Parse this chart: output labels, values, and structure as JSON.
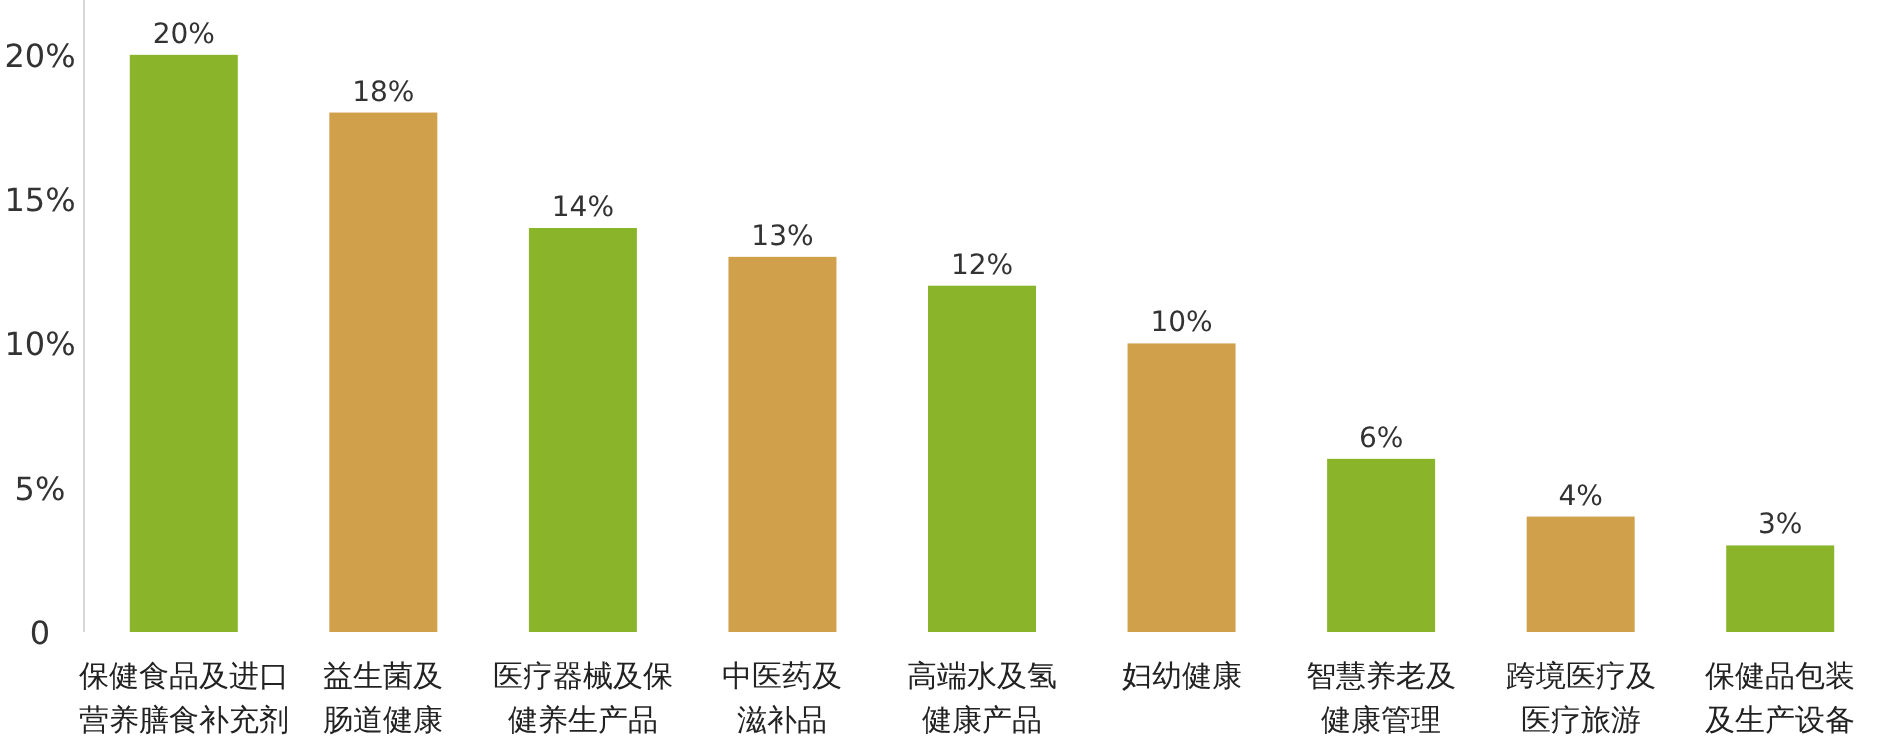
{
  "chart_data": {
    "type": "bar",
    "categories": [
      "保健食品及进口营养膳食补充剂",
      "益生菌及肠道健康",
      "医疗器械及保健养生产品",
      "中医药及滋补品",
      "高端水及氢健康产品",
      "妇幼健康",
      "智慧养老及健康管理",
      "跨境医疗及医疗旅游",
      "保健品包装及生产设备"
    ],
    "values": [
      20,
      18,
      14,
      13,
      12,
      10,
      6,
      4,
      3
    ],
    "colors": [
      "#8ab52a",
      "#d1a04b",
      "#8ab52a",
      "#d1a04b",
      "#8ab52a",
      "#d1a04b",
      "#8ab52a",
      "#d1a04b",
      "#8ab52a"
    ],
    "value_labels": [
      "20%",
      "18%",
      "14%",
      "13%",
      "12%",
      "10%",
      "6%",
      "4%",
      "3%"
    ],
    "ylim": [
      0,
      21.9
    ],
    "yticks": [
      0,
      {
        "value": 5,
        "label": "5%"
      },
      {
        "value": 10,
        "label": "10%"
      },
      {
        "value": 15,
        "label": "15%"
      },
      {
        "value": 20,
        "label": "20%"
      }
    ],
    "grid": false
  }
}
